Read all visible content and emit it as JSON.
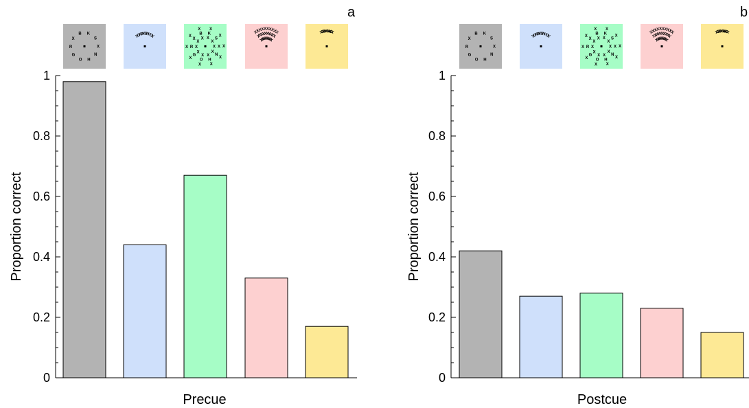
{
  "chart_data": [
    {
      "type": "bar",
      "panel_label": "a",
      "categories": [
        "",
        "",
        "",
        "",
        ""
      ],
      "values": [
        0.98,
        0.44,
        0.67,
        0.33,
        0.17
      ],
      "colors": [
        "#b3b3b3",
        "#cfe0fb",
        "#a6fdc6",
        "#fdd0d0",
        "#fde995"
      ],
      "title": "",
      "xlabel": "Precue",
      "ylabel": "Proportion correct",
      "ylim": [
        0,
        1
      ],
      "yticks": [
        "0",
        "0.2",
        "0.4",
        "0.6",
        "0.8",
        "1"
      ],
      "grid": false
    },
    {
      "type": "bar",
      "panel_label": "b",
      "categories": [
        "",
        "",
        "",
        "",
        ""
      ],
      "values": [
        0.42,
        0.27,
        0.28,
        0.23,
        0.15
      ],
      "colors": [
        "#b3b3b3",
        "#cfe0fb",
        "#a6fdc6",
        "#fdd0d0",
        "#fde995"
      ],
      "title": "",
      "xlabel": "Postcue",
      "ylabel": "Proportion correct",
      "ylim": [
        0,
        1
      ],
      "yticks": [
        "0",
        "0.2",
        "0.4",
        "0.6",
        "0.8",
        "1"
      ],
      "grid": false
    }
  ],
  "stimulus_icons": [
    {
      "kind": "ring",
      "letters": [
        "K",
        "S",
        "X",
        "N",
        "H",
        "O",
        "G",
        "R",
        "X",
        "B"
      ]
    },
    {
      "kind": "arc",
      "text": "XGRBKSNHOX"
    },
    {
      "kind": "ring-crowded",
      "letters": [
        "K",
        "S",
        "X",
        "N",
        "H",
        "O",
        "G",
        "R",
        "X",
        "B"
      ]
    },
    {
      "kind": "arc-crowded",
      "text": "XXXXXXXXXX"
    },
    {
      "kind": "arc-small",
      "text": "XGRBKSNHOX"
    }
  ]
}
